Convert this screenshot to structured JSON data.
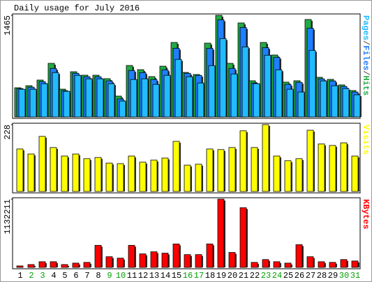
{
  "chart_data": [
    {
      "type": "bar",
      "title": "Daily usage for July 2016",
      "ylim": [
        0,
        1465
      ],
      "yticks": [
        1465
      ],
      "legend_separator": "/",
      "series": [
        {
          "name": "Pages",
          "color": "#22bbff",
          "values": [
            400,
            400,
            480,
            640,
            370,
            600,
            550,
            550,
            480,
            230,
            540,
            550,
            470,
            600,
            830,
            580,
            490,
            740,
            1130,
            620,
            1010,
            480,
            890,
            680,
            400,
            360,
            960,
            520,
            450,
            410,
            320
          ]
        },
        {
          "name": "Files",
          "color": "#1e7fff",
          "values": [
            410,
            430,
            510,
            700,
            380,
            630,
            580,
            580,
            520,
            260,
            670,
            640,
            540,
            680,
            990,
            630,
            600,
            990,
            1400,
            700,
            1290,
            490,
            1000,
            860,
            470,
            500,
            1280,
            550,
            520,
            440,
            360
          ]
        },
        {
          "name": "Hits",
          "color": "#22aa44",
          "values": [
            421,
            451,
            532,
            773,
            401,
            652,
            602,
            602,
            552,
            301,
            742,
            682,
            582,
            732,
            1074,
            642,
            612,
            1064,
            1465,
            773,
            1355,
            522,
            1074,
            893,
            502,
            522,
            1405,
            572,
            542,
            462,
            381
          ]
        }
      ]
    },
    {
      "type": "bar",
      "ylim": [
        0,
        228
      ],
      "yticks": [
        228
      ],
      "series": [
        {
          "name": "Visits",
          "color": "#ffff00",
          "values": [
            145,
            128,
            188,
            150,
            121,
            128,
            112,
            116,
            97,
            95,
            121,
            100,
            107,
            114,
            171,
            90,
            93,
            145,
            143,
            150,
            207,
            150,
            228,
            121,
            105,
            112,
            209,
            162,
            157,
            166,
            121
          ]
        }
      ]
    },
    {
      "type": "bar",
      "ylim": [
        0,
        1132211
      ],
      "yticks": [
        1132211
      ],
      "categories": [
        "1",
        "2",
        "3",
        "4",
        "5",
        "6",
        "7",
        "8",
        "9",
        "10",
        "11",
        "12",
        "13",
        "14",
        "15",
        "16",
        "17",
        "18",
        "19",
        "20",
        "21",
        "22",
        "23",
        "24",
        "25",
        "26",
        "27",
        "28",
        "29",
        "30",
        "31"
      ],
      "weekend_days": [
        2,
        3,
        9,
        10,
        16,
        17,
        23,
        24,
        30,
        31
      ],
      "weekend_color": "#00a000",
      "series": [
        {
          "name": "KBytes",
          "color": "#ff0000",
          "values": [
            24000,
            47000,
            94000,
            94000,
            47000,
            71000,
            83000,
            366000,
            177000,
            153000,
            366000,
            224000,
            259000,
            236000,
            389000,
            212000,
            212000,
            389000,
            1132211,
            248000,
            991000,
            83000,
            130000,
            94000,
            71000,
            377000,
            177000,
            94000,
            83000,
            130000,
            106000
          ]
        }
      ]
    }
  ]
}
